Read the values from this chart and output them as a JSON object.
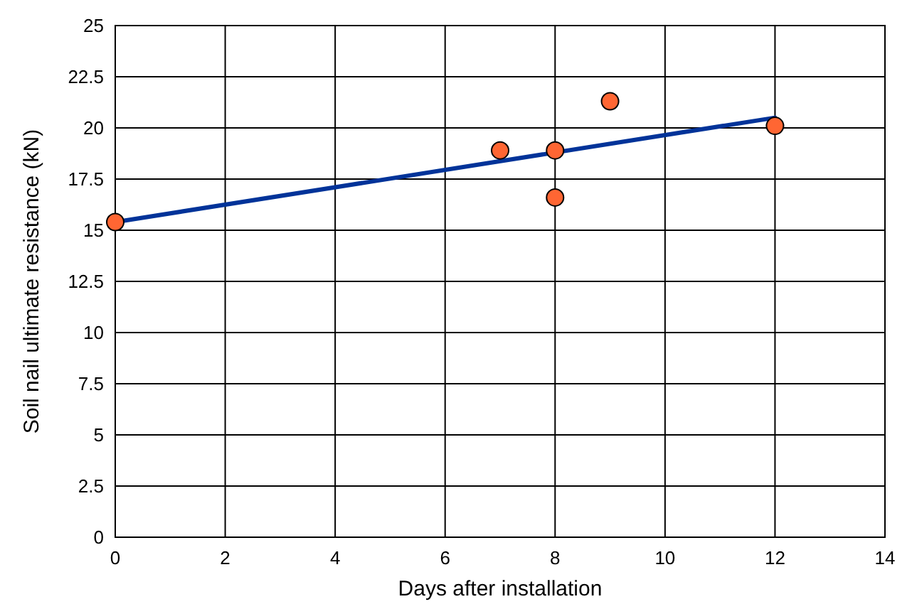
{
  "chart_data": {
    "type": "scatter",
    "xlabel": "Days after installation",
    "ylabel": "Soil nail ultimate resistance (kN)",
    "xlim": [
      0,
      14
    ],
    "ylim": [
      0,
      25
    ],
    "xticks": [
      0,
      2,
      4,
      6,
      8,
      10,
      12,
      14
    ],
    "yticks": [
      0,
      2.5,
      5,
      7.5,
      10,
      12.5,
      15,
      17.5,
      20,
      22.5,
      25
    ],
    "grid": true,
    "series": [
      {
        "type": "line",
        "color": "#003399",
        "x": [
          0,
          12
        ],
        "values": [
          15.4,
          20.5
        ],
        "marker": "none",
        "line_style": "solid"
      },
      {
        "color": "#ff6633",
        "x": [
          0,
          7,
          8,
          8,
          9,
          12
        ],
        "values": [
          15.4,
          18.9,
          18.9,
          16.6,
          21.3,
          20.1
        ],
        "marker": "circle"
      }
    ]
  }
}
